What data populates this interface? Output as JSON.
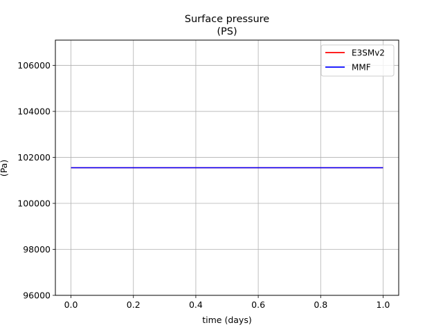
{
  "chart_data": {
    "type": "line",
    "title": "Surface pressure",
    "subtitle": "(PS)",
    "xlabel": "time (days)",
    "ylabel": "(Pa)",
    "xlim": [
      -0.05,
      1.05
    ],
    "ylim": [
      96000,
      107100
    ],
    "x_ticks": [
      0.0,
      0.2,
      0.4,
      0.6,
      0.8,
      1.0
    ],
    "x_tick_labels": [
      "0.0",
      "0.2",
      "0.4",
      "0.6",
      "0.8",
      "1.0"
    ],
    "y_ticks": [
      96000,
      98000,
      100000,
      102000,
      104000,
      106000
    ],
    "y_tick_labels": [
      "96000",
      "98000",
      "100000",
      "102000",
      "104000",
      "106000"
    ],
    "grid": true,
    "legend_position": "top-right",
    "series": [
      {
        "name": "E3SMv2",
        "color": "#ff0000",
        "x": [
          0.0,
          1.0
        ],
        "y": [
          101550,
          101550
        ]
      },
      {
        "name": "MMF",
        "color": "#0000ff",
        "x": [
          0.0,
          1.0
        ],
        "y": [
          101550,
          101550
        ]
      }
    ]
  }
}
